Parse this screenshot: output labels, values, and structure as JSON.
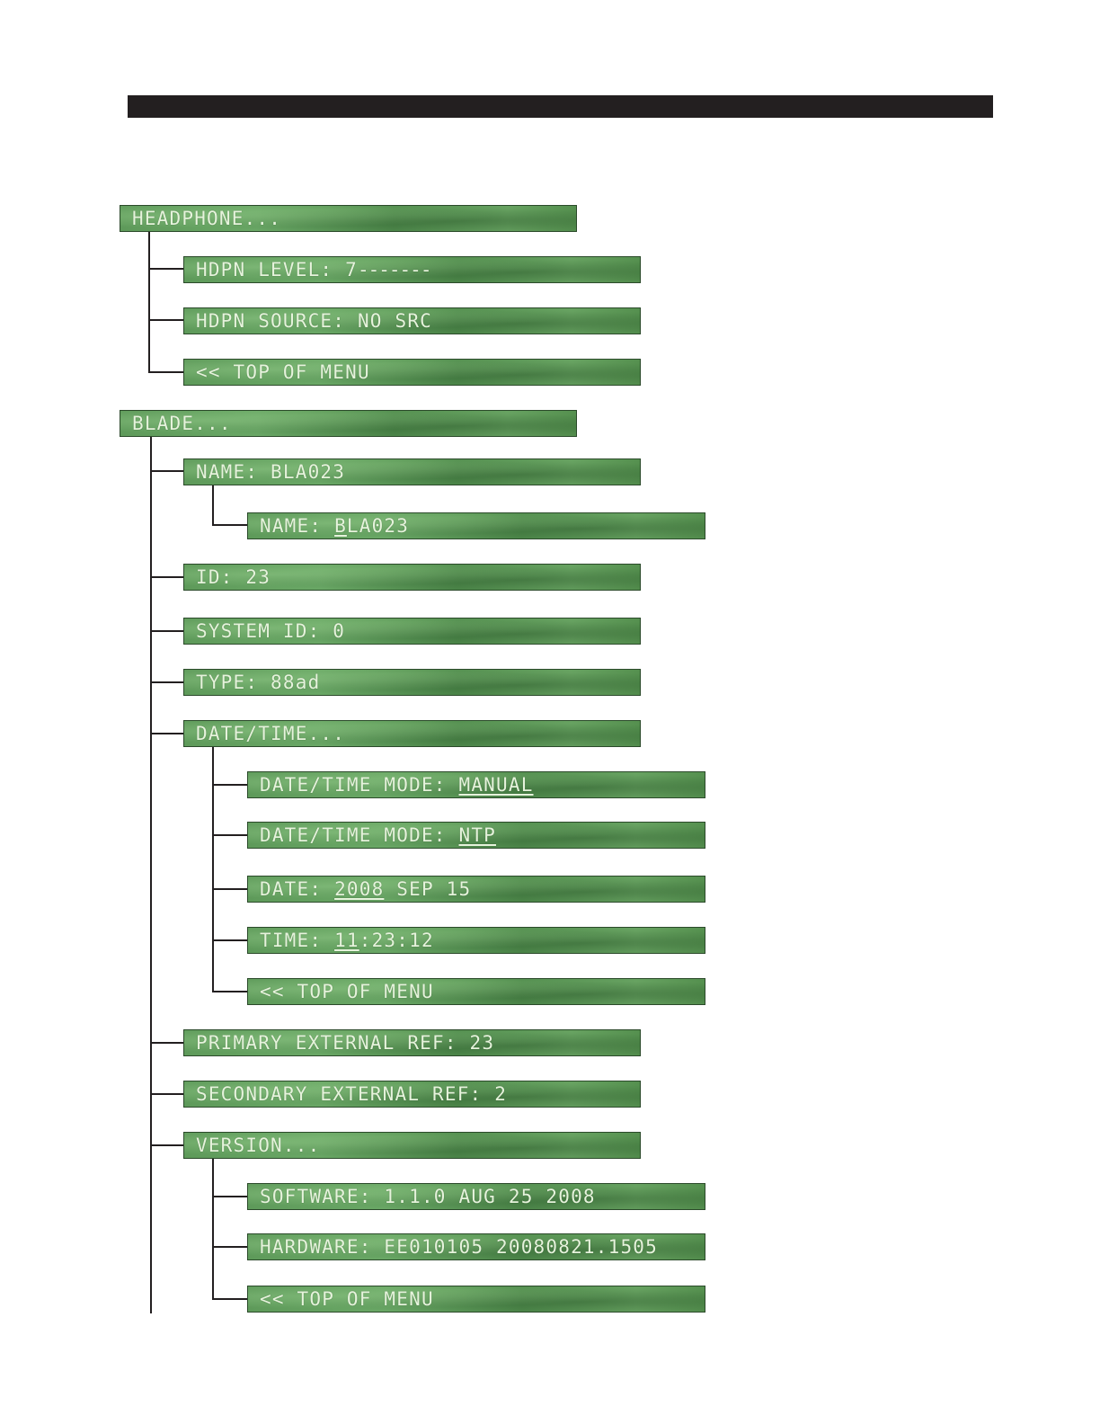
{
  "headphone": {
    "title": "HEADPHONE...",
    "level_label": "HDPN LEVEL: ",
    "level_value": "7",
    "level_bar": "-------",
    "source": "HDPN SOURCE: NO SRC",
    "top": "<< TOP OF MENU"
  },
  "blade": {
    "title": "BLADE...",
    "name": "NAME: BLA023",
    "name_edit_label": "NAME: ",
    "name_edit_cursor": "B",
    "name_edit_rest": "LA023",
    "id": "ID: 23",
    "system_id": "SYSTEM ID: 0",
    "type": "TYPE: 88ad",
    "datetime": {
      "title": "DATE/TIME...",
      "mode_label": "DATE/TIME MODE: ",
      "mode_manual": "MANUAL",
      "mode_ntp": "NTP",
      "date_label": "DATE: ",
      "date_year": "2008",
      "date_rest": " SEP 15",
      "time_label": "TIME: ",
      "time_hour": "11",
      "time_rest": ":23:12",
      "top": "<< TOP OF MENU"
    },
    "primary_ref": "PRIMARY EXTERNAL REF: 23",
    "secondary_ref": "SECONDARY EXTERNAL REF: 2",
    "version": {
      "title": "VERSION...",
      "software": "SOFTWARE: 1.1.0 AUG 25 2008",
      "hardware": "HARDWARE: EE010105 20080821.1505",
      "top": "<< TOP OF MENU"
    }
  }
}
